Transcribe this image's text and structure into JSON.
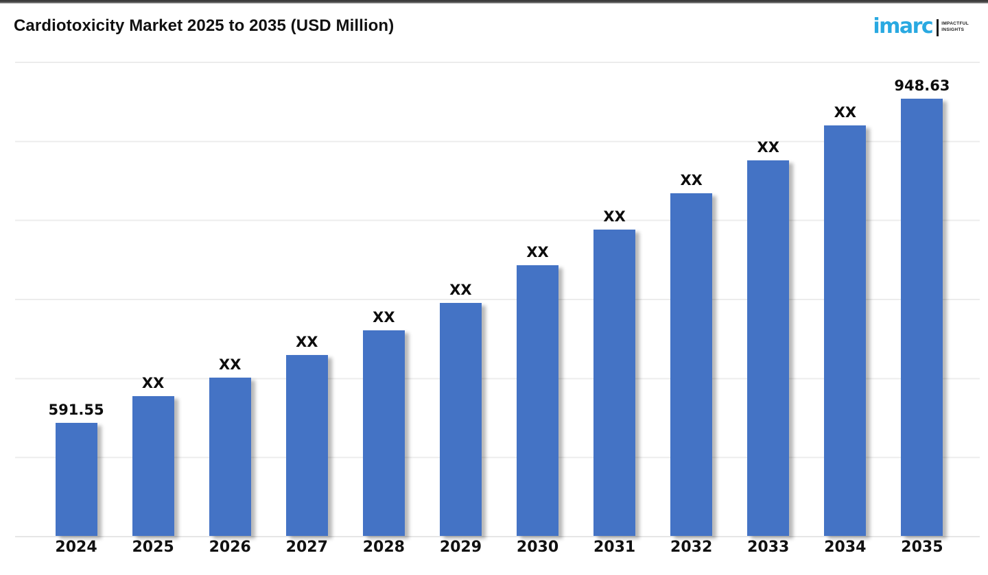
{
  "header": {
    "title": "Cardiotoxicity Market 2025 to 2035 (USD Million)",
    "logo": {
      "brand": "imarc",
      "tagline_line1": "IMPACTFUL",
      "tagline_line2": "INSIGHTS",
      "brand_color": "#29A9E1"
    }
  },
  "chart_data": {
    "type": "bar",
    "title": "Cardiotoxicity Market 2025 to 2035 (USD Million)",
    "unit": "USD Million",
    "categories": [
      "2024",
      "2025",
      "2026",
      "2027",
      "2028",
      "2029",
      "2030",
      "2031",
      "2032",
      "2033",
      "2034",
      "2035"
    ],
    "bar_labels": [
      "591.55",
      "XX",
      "XX",
      "XX",
      "XX",
      "XX",
      "XX",
      "XX",
      "XX",
      "XX",
      "XX",
      "948.63"
    ],
    "known_values": {
      "2024": 591.55,
      "2035": 948.63
    },
    "values_est": [
      591.55,
      620.9,
      641.3,
      666.1,
      693.2,
      723.4,
      764.8,
      804.0,
      843.9,
      880.1,
      919.2,
      948.63
    ],
    "bar_color": "#4473C5",
    "axis": {
      "baseline_value": 467,
      "top_value": 989,
      "gridline_count": 7,
      "grid_color": "#ececec",
      "x_labels_shown": true,
      "y_labels_shown": false
    },
    "legend": {
      "shown": false
    }
  }
}
